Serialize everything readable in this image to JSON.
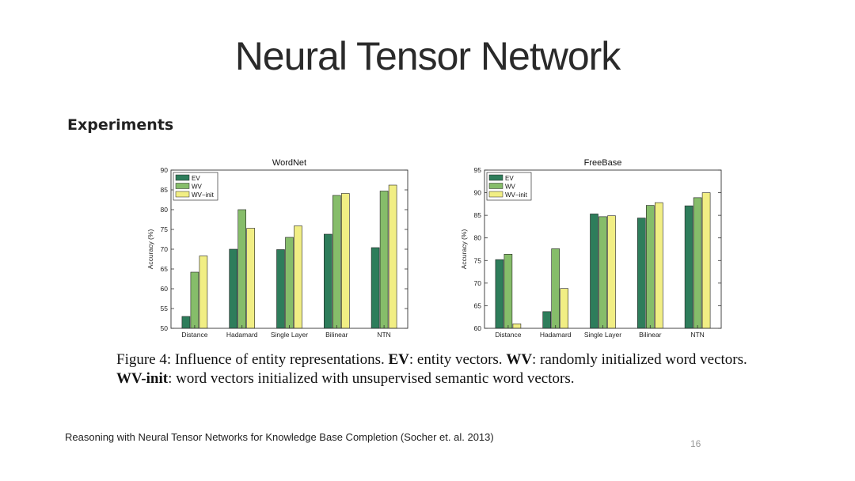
{
  "slide": {
    "title": "Neural Tensor Network",
    "heading": "Experiments",
    "citation": "Reasoning with Neural Tensor Networks for Knowledge Base Completion (Socher et. al. 2013)",
    "page_number": "16"
  },
  "caption": {
    "fig_label": "Figure 4: Influence of entity representations.",
    "ev_term": "EV",
    "ev_desc": ": entity vectors.",
    "wv_term": "WV",
    "wv_desc": ": randomly initialized word vectors.",
    "wvinit_term": "WV-init",
    "wvinit_desc": ": word vectors initialized with unsupervised semantic word vectors."
  },
  "colors": {
    "EV": "#2e7d5b",
    "WV": "#86bd6a",
    "WV-init": "#f1ee84"
  },
  "chart_data": [
    {
      "type": "bar",
      "title": "WordNet",
      "ylabel": "Accuracy (%)",
      "xlabel": "",
      "ylim": [
        50,
        90
      ],
      "yticks": [
        50,
        55,
        60,
        65,
        70,
        75,
        80,
        85,
        90
      ],
      "categories": [
        "Distance",
        "Hadamard",
        "Single Layer",
        "Bilinear",
        "NTN"
      ],
      "series": [
        {
          "name": "EV",
          "values": [
            53,
            70,
            69.9,
            73.8,
            70.4
          ]
        },
        {
          "name": "WV",
          "values": [
            64.2,
            80,
            73,
            83.6,
            84.7
          ]
        },
        {
          "name": "WV−init",
          "values": [
            68.3,
            75.3,
            75.9,
            84.1,
            86.2
          ]
        }
      ],
      "legend": "top-left",
      "grid": false
    },
    {
      "type": "bar",
      "title": "FreeBase",
      "ylabel": "Accuracy (%)",
      "xlabel": "",
      "ylim": [
        60,
        95
      ],
      "yticks": [
        60,
        65,
        70,
        75,
        80,
        85,
        90,
        95
      ],
      "categories": [
        "Distance",
        "Hadamard",
        "Single Layer",
        "Bilinear",
        "NTN"
      ],
      "series": [
        {
          "name": "EV",
          "values": [
            75.2,
            63.7,
            85.3,
            84.4,
            87.1
          ]
        },
        {
          "name": "WV",
          "values": [
            76.4,
            77.6,
            84.7,
            87.2,
            88.9
          ]
        },
        {
          "name": "WV−init",
          "values": [
            61,
            68.8,
            84.9,
            87.8,
            90
          ]
        }
      ],
      "legend": "top-left",
      "grid": false
    }
  ]
}
